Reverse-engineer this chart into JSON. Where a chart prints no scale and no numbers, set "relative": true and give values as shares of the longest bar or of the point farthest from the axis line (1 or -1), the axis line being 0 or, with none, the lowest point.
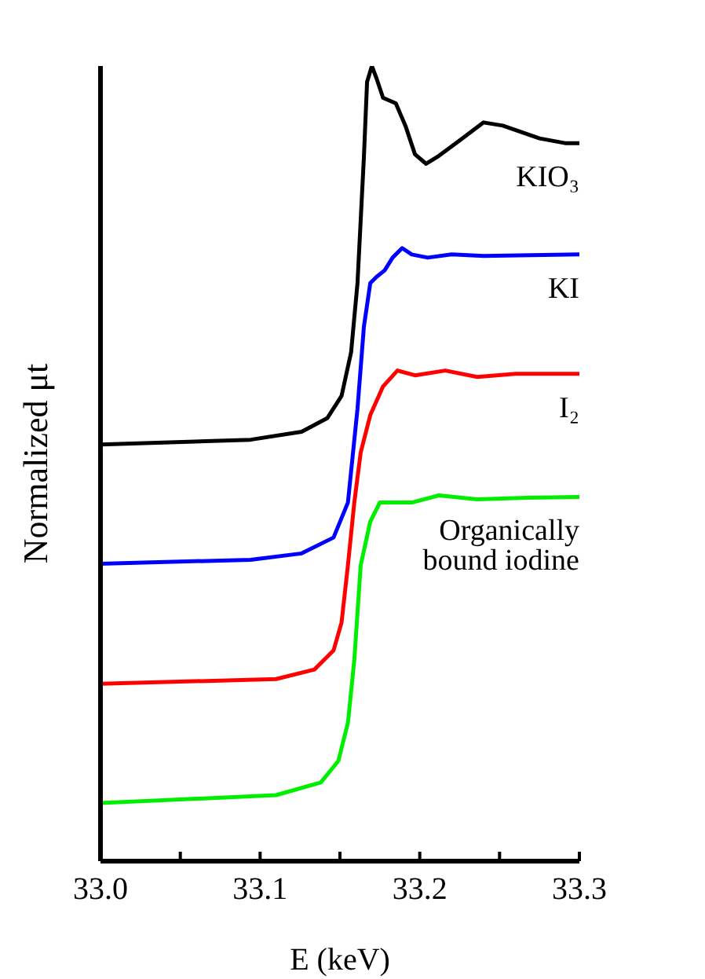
{
  "chart_data": {
    "type": "line",
    "relative": true,
    "xlabel": "E (keV)",
    "ylabel": "Normalized μt",
    "xlim": [
      33.0,
      33.3
    ],
    "xticks": [
      {
        "value": 33.0,
        "label": "33.0"
      },
      {
        "value": 33.05,
        "label": null
      },
      {
        "value": 33.1,
        "label": "33.1"
      },
      {
        "value": 33.15,
        "label": null
      },
      {
        "value": 33.2,
        "label": "33.2"
      },
      {
        "value": 33.25,
        "label": null
      },
      {
        "value": 33.3,
        "label": "33.3"
      }
    ],
    "tick_labels": "x",
    "legend": false,
    "grid": false,
    "series": [
      {
        "name": "KIO₃",
        "color": "#000000",
        "x": [
          33.0,
          33.094,
          33.126,
          33.142,
          33.151,
          33.157,
          33.161,
          33.165,
          33.167,
          33.17,
          33.173,
          33.177,
          33.185,
          33.191,
          33.197,
          33.204,
          33.212,
          33.224,
          33.24,
          33.252,
          33.275,
          33.291,
          33.3
        ],
        "values": [
          0.524,
          0.53,
          0.54,
          0.557,
          0.585,
          0.64,
          0.727,
          0.885,
          0.98,
          1.0,
          0.984,
          0.96,
          0.953,
          0.925,
          0.889,
          0.877,
          0.887,
          0.905,
          0.929,
          0.925,
          0.909,
          0.903,
          0.903
        ]
      },
      {
        "name": "KI",
        "color": "#0000ff",
        "x": [
          33.0,
          33.094,
          33.126,
          33.146,
          33.155,
          33.161,
          33.165,
          33.169,
          33.173,
          33.178,
          33.183,
          33.189,
          33.195,
          33.205,
          33.22,
          33.24,
          33.3
        ],
        "values": [
          0.374,
          0.379,
          0.387,
          0.407,
          0.451,
          0.569,
          0.672,
          0.727,
          0.735,
          0.743,
          0.759,
          0.771,
          0.763,
          0.759,
          0.763,
          0.761,
          0.763
        ]
      },
      {
        "name": "I₂",
        "color": "#ff0000",
        "x": [
          33.0,
          33.11,
          33.134,
          33.146,
          33.151,
          33.155,
          33.159,
          33.163,
          33.169,
          33.177,
          33.186,
          33.197,
          33.216,
          33.236,
          33.26,
          33.3
        ],
        "values": [
          0.223,
          0.229,
          0.241,
          0.265,
          0.3,
          0.372,
          0.451,
          0.514,
          0.561,
          0.597,
          0.617,
          0.611,
          0.617,
          0.609,
          0.613,
          0.613
        ]
      },
      {
        "name": "Organically bound iodine",
        "color": "#00ee00",
        "x": [
          33.0,
          33.11,
          33.138,
          33.149,
          33.155,
          33.159,
          33.163,
          33.169,
          33.175,
          33.185,
          33.195,
          33.212,
          33.236,
          33.267,
          33.3
        ],
        "values": [
          0.073,
          0.083,
          0.099,
          0.126,
          0.174,
          0.253,
          0.372,
          0.427,
          0.451,
          0.451,
          0.451,
          0.46,
          0.455,
          0.457,
          0.458
        ]
      }
    ]
  }
}
